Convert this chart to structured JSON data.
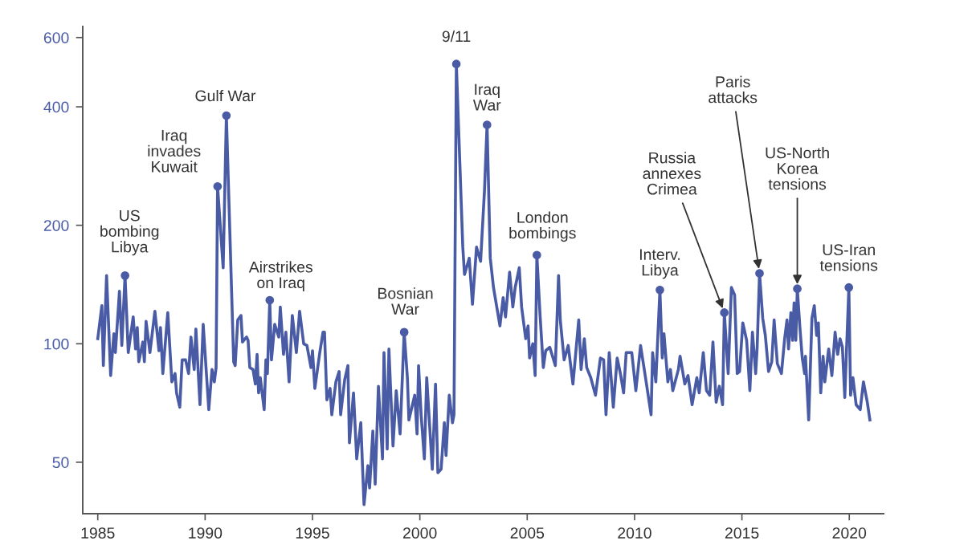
{
  "chart_data": {
    "type": "line",
    "log": "y",
    "grid": false,
    "marker": "none",
    "line_style": "solid",
    "xlim": [
      1984.3,
      2021.6
    ],
    "xticks": [
      1985,
      1990,
      1995,
      2000,
      2005,
      2010,
      2015,
      2020
    ],
    "ylim": [
      37,
      640
    ],
    "yticks": [
      50,
      100,
      200,
      400,
      600
    ],
    "series": [
      {
        "color": "#4a5ba6",
        "x": [
          1985.0,
          1985.19,
          1985.26,
          1985.41,
          1985.6,
          1985.75,
          1985.82,
          1986.01,
          1986.12,
          1986.27,
          1986.42,
          1986.65,
          1986.76,
          1986.84,
          1986.91,
          1987.1,
          1987.17,
          1987.25,
          1987.43,
          1987.66,
          1987.85,
          1987.92,
          1988.03,
          1988.26,
          1988.45,
          1988.6,
          1988.67,
          1988.82,
          1988.93,
          1989.09,
          1989.23,
          1989.34,
          1989.49,
          1989.57,
          1989.76,
          1989.91,
          1990.17,
          1990.32,
          1990.43,
          1990.51,
          1990.58,
          1990.84,
          1990.99,
          1991.33,
          1991.4,
          1991.52,
          1991.67,
          1991.74,
          1991.93,
          1992.0,
          1992.08,
          1992.23,
          1992.34,
          1992.42,
          1992.49,
          1992.57,
          1992.75,
          1992.83,
          1992.9,
          1993.01,
          1993.09,
          1993.24,
          1993.43,
          1993.5,
          1993.65,
          1993.76,
          1993.91,
          1994.06,
          1994.25,
          1994.4,
          1994.59,
          1994.74,
          1994.93,
          1995.0,
          1995.11,
          1995.34,
          1995.49,
          1995.56,
          1995.67,
          1995.82,
          1995.9,
          1996.09,
          1996.24,
          1996.31,
          1996.5,
          1996.65,
          1996.72,
          1996.91,
          1997.06,
          1997.25,
          1997.4,
          1997.58,
          1997.66,
          1997.81,
          1997.92,
          1998.07,
          1998.26,
          1998.33,
          1998.48,
          1998.56,
          1998.75,
          1998.9,
          1999.08,
          1999.27,
          1999.42,
          1999.49,
          1999.76,
          1999.87,
          1999.94,
          2000.06,
          2000.21,
          2000.32,
          2000.58,
          2000.73,
          2000.84,
          2000.99,
          2001.14,
          2001.22,
          2001.37,
          2001.52,
          2001.59,
          2001.7,
          2002.0,
          2002.08,
          2002.3,
          2002.45,
          2002.64,
          2002.83,
          2003.01,
          2003.13,
          2003.28,
          2003.43,
          2003.73,
          2003.88,
          2003.99,
          2004.18,
          2004.33,
          2004.44,
          2004.63,
          2004.74,
          2004.93,
          2005.04,
          2005.11,
          2005.26,
          2005.37,
          2005.45,
          2005.6,
          2005.75,
          2005.86,
          2006.05,
          2006.31,
          2006.46,
          2006.54,
          2006.72,
          2006.91,
          2007.13,
          2007.4,
          2007.51,
          2007.66,
          2007.77,
          2007.96,
          2008.18,
          2008.41,
          2008.56,
          2008.67,
          2008.82,
          2009.01,
          2009.19,
          2009.34,
          2009.49,
          2009.61,
          2009.87,
          2010.06,
          2010.28,
          2010.54,
          2010.77,
          2010.84,
          2010.99,
          2011.18,
          2011.29,
          2011.37,
          2011.55,
          2011.67,
          2011.78,
          2012.04,
          2012.12,
          2012.34,
          2012.49,
          2012.68,
          2012.9,
          2013.01,
          2013.2,
          2013.35,
          2013.5,
          2013.65,
          2013.8,
          2013.95,
          2014.1,
          2014.18,
          2014.36,
          2014.51,
          2014.66,
          2014.78,
          2014.89,
          2015.04,
          2015.22,
          2015.37,
          2015.49,
          2015.64,
          2015.71,
          2015.82,
          2015.97,
          2016.09,
          2016.24,
          2016.39,
          2016.5,
          2016.65,
          2016.84,
          2016.99,
          2017.1,
          2017.17,
          2017.28,
          2017.36,
          2017.43,
          2017.51,
          2017.58,
          2017.7,
          2017.81,
          2017.92,
          2017.96,
          2018.11,
          2018.26,
          2018.37,
          2018.48,
          2018.56,
          2018.67,
          2018.78,
          2018.86,
          2019.04,
          2019.19,
          2019.34,
          2019.46,
          2019.57,
          2019.68,
          2019.79,
          2019.98,
          2020.06,
          2020.17,
          2020.32,
          2020.51,
          2020.66,
          2020.84,
          2020.96
        ],
        "values": [
          103,
          125,
          88,
          149,
          83,
          106,
          95,
          136,
          99,
          149,
          95,
          117,
          97,
          110,
          90,
          101,
          90,
          114,
          95,
          121,
          96,
          110,
          84,
          120,
          80,
          84,
          75,
          69,
          91,
          91,
          84,
          104,
          86,
          109,
          70,
          112,
          68,
          86,
          80,
          87,
          251,
          156,
          380,
          90,
          88,
          115,
          118,
          101,
          104,
          102,
          87,
          86,
          79,
          94,
          75,
          82,
          68,
          91,
          84,
          129,
          91,
          112,
          104,
          124,
          94,
          107,
          80,
          118,
          95,
          121,
          100,
          99,
          87,
          96,
          77,
          95,
          107,
          107,
          72,
          77,
          66,
          80,
          85,
          66,
          81,
          88,
          56,
          75,
          51,
          63,
          39,
          49,
          43,
          60,
          44,
          78,
          51,
          95,
          54,
          97,
          55,
          76,
          59,
          107,
          82,
          64,
          74,
          59,
          88,
          66,
          51,
          82,
          48,
          79,
          47,
          48,
          63,
          52,
          74,
          63,
          66,
          514,
          176,
          150,
          165,
          126,
          176,
          162,
          245,
          360,
          165,
          139,
          111,
          131,
          117,
          152,
          124,
          139,
          156,
          124,
          103,
          111,
          92,
          100,
          83,
          168,
          118,
          87,
          96,
          98,
          88,
          149,
          115,
          91,
          99,
          79,
          115,
          86,
          103,
          87,
          82,
          74,
          92,
          91,
          66,
          95,
          69,
          92,
          84,
          75,
          95,
          95,
          76,
          99,
          80,
          66,
          95,
          80,
          137,
          92,
          106,
          80,
          86,
          76,
          86,
          93,
          79,
          83,
          70,
          82,
          75,
          95,
          76,
          74,
          101,
          71,
          78,
          70,
          120,
          84,
          139,
          133,
          84,
          85,
          113,
          102,
          76,
          107,
          84,
          98,
          151,
          116,
          105,
          85,
          90,
          115,
          89,
          84,
          103,
          115,
          97,
          120,
          102,
          127,
          102,
          138,
          110,
          92,
          84,
          93,
          64,
          116,
          125,
          105,
          113,
          75,
          93,
          80,
          97,
          83,
          107,
          94,
          103,
          98,
          73,
          139,
          74,
          82,
          70,
          68,
          80,
          71,
          64
        ]
      }
    ],
    "annotations": [
      {
        "text": "US\nbombing\nLibya",
        "x": 1986.27,
        "y": 149
      },
      {
        "text": "Iraq\ninvades\nKuwait",
        "x": 1990.58,
        "y": 251
      },
      {
        "text": "Gulf War",
        "x": 1990.99,
        "y": 380
      },
      {
        "text": "Airstrikes\non Iraq",
        "x": 1993.01,
        "y": 129
      },
      {
        "text": "Bosnian\nWar",
        "x": 1999.27,
        "y": 107
      },
      {
        "text": "9/11",
        "x": 2001.7,
        "y": 514
      },
      {
        "text": "Iraq\nWar",
        "x": 2003.13,
        "y": 360
      },
      {
        "text": "London\nbombings",
        "x": 2005.45,
        "y": 168
      },
      {
        "text": "Interv.\nLibya",
        "x": 2011.18,
        "y": 137
      },
      {
        "text": "Russia\nannexes\nCrimea",
        "x": 2014.18,
        "y": 120
      },
      {
        "text": "Paris\nattacks",
        "x": 2015.82,
        "y": 151
      },
      {
        "text": "US-North\nKorea\ntensions",
        "x": 2017.58,
        "y": 138
      },
      {
        "text": "US-Iran\ntensions",
        "x": 2019.98,
        "y": 139
      }
    ]
  }
}
